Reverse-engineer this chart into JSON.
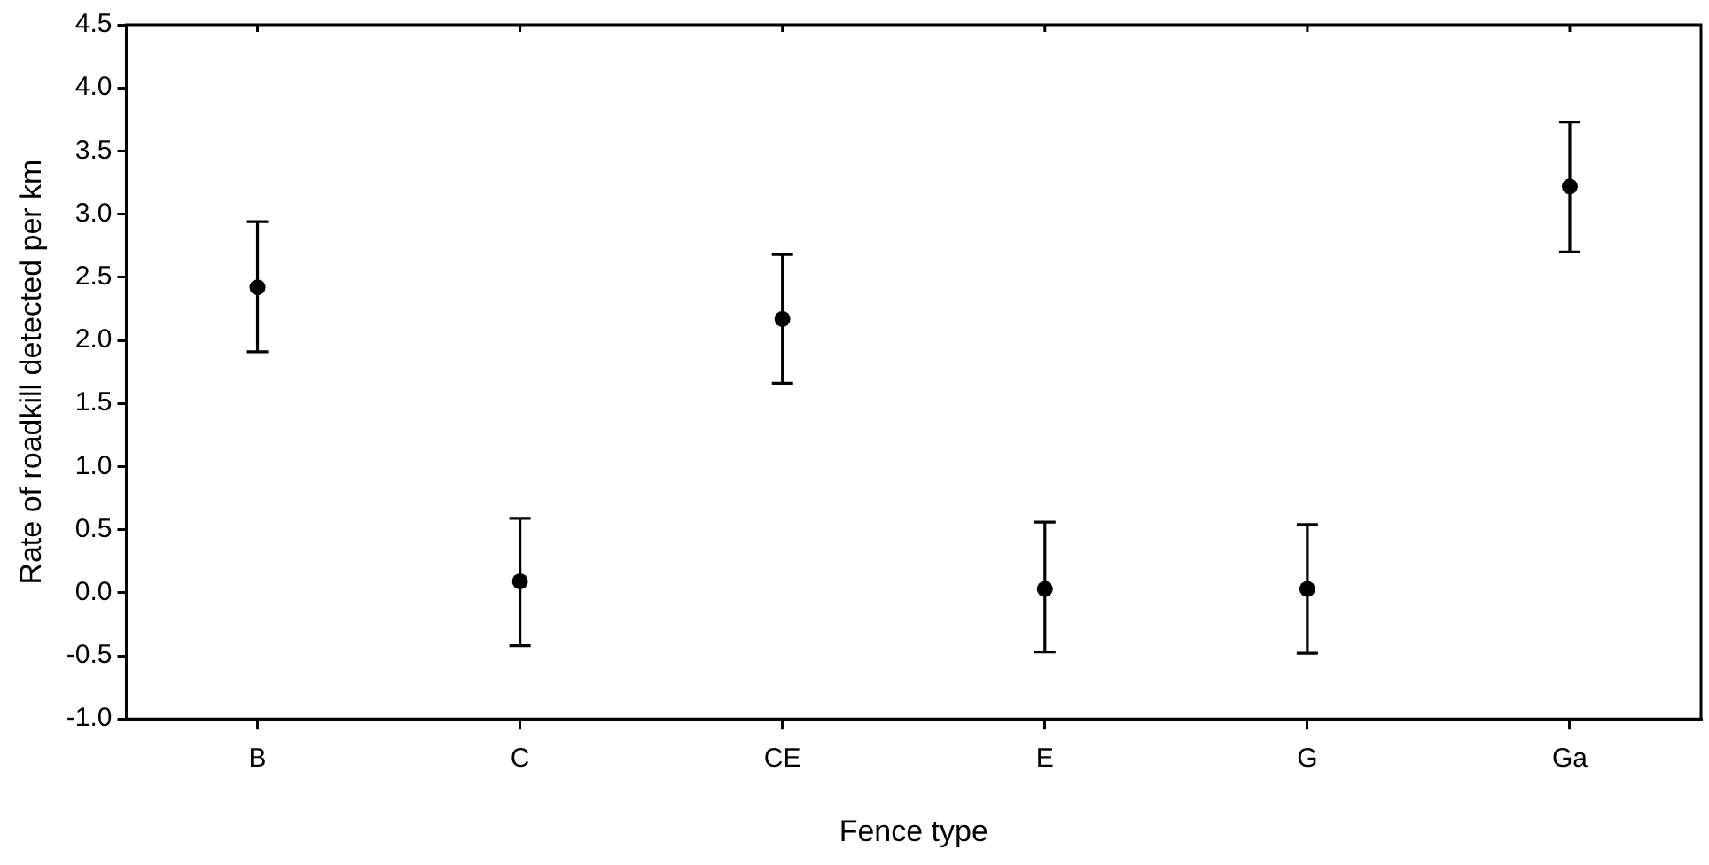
{
  "chart_data": {
    "type": "scatter",
    "xlabel": "Fence type",
    "ylabel": "Rate of roadkill detected per km",
    "categories": [
      "B",
      "C",
      "CE",
      "E",
      "G",
      "Ga"
    ],
    "series": [
      {
        "color": "#000000",
        "values": [
          2.42,
          0.09,
          2.17,
          0.03,
          0.03,
          3.22
        ],
        "errors": [
          [
            1.91,
            2.94
          ],
          [
            -0.42,
            0.59
          ],
          [
            1.66,
            2.68
          ],
          [
            -0.47,
            0.56
          ],
          [
            -0.48,
            0.54
          ],
          [
            2.7,
            3.73
          ]
        ]
      }
    ],
    "ylim": [
      -1,
      4.5
    ],
    "yticks": [
      {
        "value": -1,
        "label": "-1.0"
      },
      {
        "value": -0.5,
        "label": "-0.5"
      },
      {
        "value": 0,
        "label": "0.0"
      },
      {
        "value": 0.5,
        "label": "0.5"
      },
      {
        "value": 1,
        "label": "1.0"
      },
      {
        "value": 1.5,
        "label": "1.5"
      },
      {
        "value": 2,
        "label": "2.0"
      },
      {
        "value": 2.5,
        "label": "2.5"
      },
      {
        "value": 3,
        "label": "3.0"
      },
      {
        "value": 3.5,
        "label": "3.5"
      },
      {
        "value": 4,
        "label": "4.0"
      },
      {
        "value": 4.5,
        "label": "4.5"
      }
    ],
    "grid": false,
    "legend": false,
    "marker": "circle"
  }
}
